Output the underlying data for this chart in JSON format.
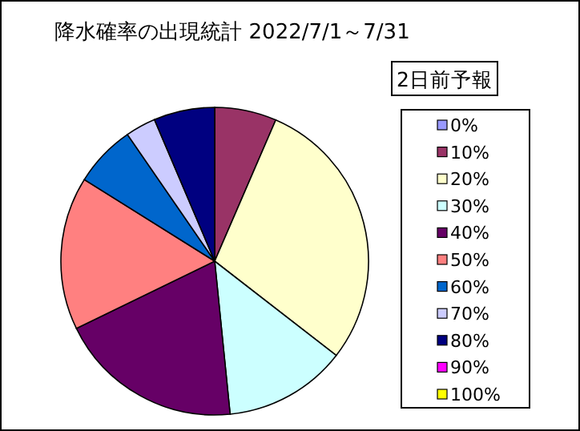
{
  "chart_data": {
    "type": "pie",
    "title": "降水確率の出現統計 2022/7/1～7/31",
    "legend_title": "2日前予報",
    "legend": "right",
    "categories": [
      "0%",
      "10%",
      "20%",
      "30%",
      "40%",
      "50%",
      "60%",
      "70%",
      "80%",
      "90%",
      "100%"
    ],
    "values": [
      0,
      6.5,
      29,
      12.9,
      19.4,
      16.1,
      6.5,
      3.2,
      6.4,
      0,
      0
    ],
    "colors": [
      "#9999ff",
      "#993366",
      "#ffffcc",
      "#ccffff",
      "#660066",
      "#ff8080",
      "#0066cc",
      "#ccccff",
      "#000080",
      "#ff00ff",
      "#ffff00"
    ]
  }
}
